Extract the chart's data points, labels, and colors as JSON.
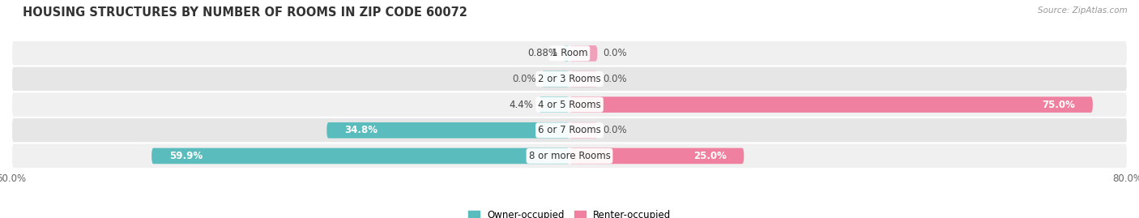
{
  "title": "HOUSING STRUCTURES BY NUMBER OF ROOMS IN ZIP CODE 60072",
  "source": "Source: ZipAtlas.com",
  "categories": [
    "1 Room",
    "2 or 3 Rooms",
    "4 or 5 Rooms",
    "6 or 7 Rooms",
    "8 or more Rooms"
  ],
  "owner_values": [
    0.88,
    0.0,
    4.4,
    34.8,
    59.9
  ],
  "renter_values": [
    0.0,
    0.0,
    75.0,
    0.0,
    25.0
  ],
  "owner_color": "#5bbcbe",
  "renter_color": "#f080a0",
  "renter_color_small": "#f0a0b8",
  "row_bg_colors": [
    "#f0f0f0",
    "#e6e6e6"
  ],
  "xlim_left": -80,
  "xlim_right": 80,
  "label_fontsize": 8.5,
  "title_fontsize": 10.5,
  "bar_height": 0.62,
  "figsize": [
    14.06,
    2.69
  ],
  "dpi": 100,
  "small_bar_stub": 4.0,
  "owner_label_threshold": 10,
  "renter_label_threshold": 10
}
